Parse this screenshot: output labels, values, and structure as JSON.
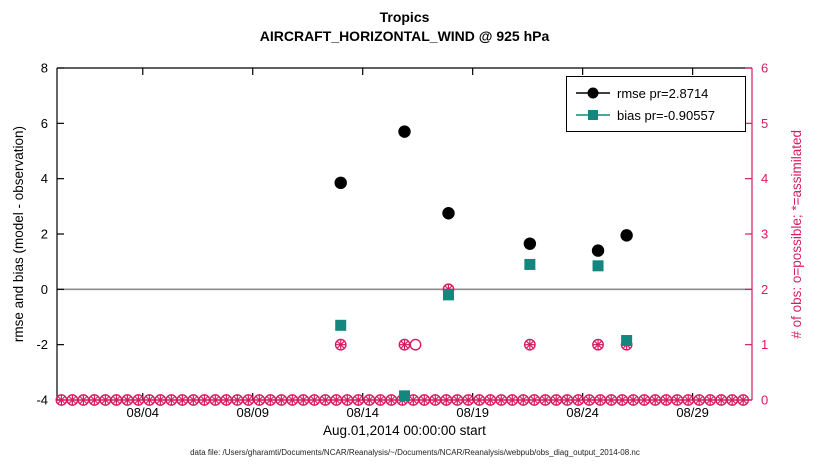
{
  "title": {
    "line1": "Tropics",
    "line2": "AIRCRAFT_HORIZONTAL_WIND @ 925 hPa"
  },
  "axes": {
    "left_label": "rmse and bias (model - observation)",
    "right_label": "# of obs: o=possible; *=assimilated",
    "x_label": "Aug.01,2014 00:00:00 start",
    "left_ticks": [
      {
        "v": 8,
        "label": "8"
      },
      {
        "v": 6,
        "label": "6"
      },
      {
        "v": 4,
        "label": "4"
      },
      {
        "v": 2,
        "label": "2"
      },
      {
        "v": 0,
        "label": "0"
      },
      {
        "v": -2,
        "label": "-2"
      },
      {
        "v": -4,
        "label": "-4"
      }
    ],
    "right_ticks": [
      {
        "v": 6,
        "label": "6"
      },
      {
        "v": 5,
        "label": "5"
      },
      {
        "v": 4,
        "label": "4"
      },
      {
        "v": 3,
        "label": "3"
      },
      {
        "v": 2,
        "label": "2"
      },
      {
        "v": 1,
        "label": "1"
      },
      {
        "v": 0,
        "label": "0"
      }
    ],
    "x_ticks": [
      {
        "day": 4,
        "label": "08/04"
      },
      {
        "day": 9,
        "label": "08/09"
      },
      {
        "day": 14,
        "label": "08/14"
      },
      {
        "day": 19,
        "label": "08/19"
      },
      {
        "day": 24,
        "label": "08/24"
      },
      {
        "day": 29,
        "label": "08/29"
      }
    ]
  },
  "legend": [
    {
      "label": "rmse pr=2.8714",
      "marker": "filled-circle",
      "color": "#000000"
    },
    {
      "label": "bias pr=-0.90557",
      "marker": "filled-square",
      "color": "#12877d"
    }
  ],
  "caption": "data file: /Users/gharamti/Documents/NCAR/Reanalysis/~/Documents/NCAR/Reanalysis/webpub/obs_diag_output_2014-08.nc",
  "colors": {
    "rmse": "#000000",
    "bias": "#12877d",
    "possible": "#d81b60",
    "assimilated": "#d81b60",
    "obs": "#d81b60",
    "zero_line": "#8c8c8c",
    "axis": "#000000"
  },
  "chart_data": {
    "type": "scatter",
    "title": "Tropics — AIRCRAFT_HORIZONTAL_WIND @ 925 hPa",
    "xlabel": "Aug.01,2014 00:00:00 start",
    "ylabel_left": "rmse and bias (model - observation)",
    "ylabel_right": "# of obs: o=possible; *=assimilated",
    "x_axis": {
      "min": 0.1,
      "max": 31.7,
      "unit": "day of Aug 2014"
    },
    "y_left": {
      "min": -4,
      "max": 8
    },
    "y_right": {
      "min": 0,
      "max": 6
    },
    "zero_line": 0,
    "series": [
      {
        "name": "possible",
        "axis": "right",
        "marker": "open-circle",
        "points": [
          [
            13,
            1
          ],
          [
            15.9,
            1
          ],
          [
            16.4,
            1
          ],
          [
            17.9,
            2
          ],
          [
            21.6,
            1
          ],
          [
            24.7,
            1
          ],
          [
            26,
            1
          ]
        ]
      },
      {
        "name": "assimilated",
        "axis": "right",
        "marker": "asterisk",
        "points": [
          [
            13,
            1
          ],
          [
            15.9,
            1
          ],
          [
            17.9,
            2
          ],
          [
            21.6,
            1
          ],
          [
            24.7,
            1
          ],
          [
            26,
            1
          ]
        ]
      },
      {
        "name": "bias",
        "axis": "left",
        "marker": "filled-square",
        "points": [
          [
            13,
            -1.3
          ],
          [
            15.9,
            -3.85
          ],
          [
            17.9,
            -0.2
          ],
          [
            21.6,
            0.9
          ],
          [
            24.7,
            0.85
          ],
          [
            26,
            -1.85
          ]
        ]
      },
      {
        "name": "rmse",
        "axis": "left",
        "marker": "filled-circle",
        "points": [
          [
            13,
            3.85
          ],
          [
            15.9,
            5.7
          ],
          [
            17.9,
            2.75
          ],
          [
            21.6,
            1.65
          ],
          [
            24.7,
            1.4
          ],
          [
            26,
            1.95
          ]
        ]
      }
    ],
    "baseline": {
      "axis": "right",
      "value": 0,
      "x_start": 0.3,
      "x_end": 31.6,
      "step": 0.5,
      "markers": [
        "open-circle",
        "asterisk"
      ]
    }
  }
}
